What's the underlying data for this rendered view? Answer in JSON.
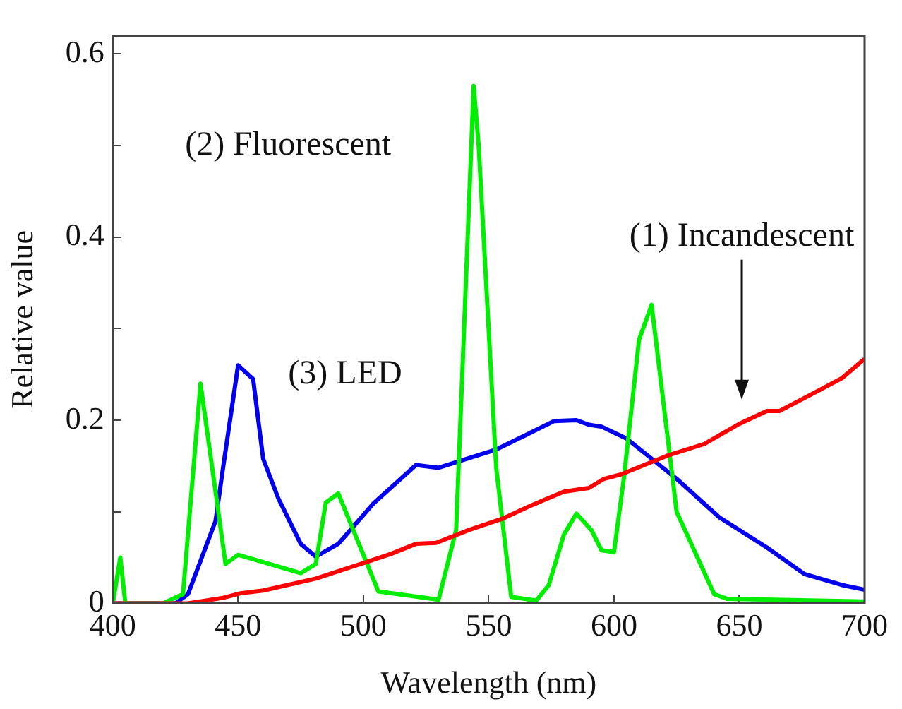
{
  "chart_data": {
    "type": "line",
    "xlabel": "Wavelength (nm)",
    "ylabel": "Relative value",
    "xlim": [
      400,
      700
    ],
    "xticks": [
      400,
      450,
      500,
      550,
      600,
      650,
      700
    ],
    "ylim": [
      0,
      0.62
    ],
    "yticks": [
      0,
      {
        "value": 0.1,
        "label": null
      },
      0.2,
      {
        "value": 0.3,
        "label": null
      },
      0.4,
      {
        "value": 0.5,
        "label": null
      },
      0.6
    ],
    "grid": false,
    "legend": false,
    "marker": "none",
    "line_style": "solid",
    "series": [
      {
        "name": "(1) Incandescent",
        "color": "#ff0000",
        "x": [
          400,
          420,
          430,
          444,
          451,
          460,
          481,
          500,
          511,
          521,
          529,
          542,
          556,
          567,
          580,
          590,
          596,
          603,
          622,
          636,
          650,
          661,
          666,
          680,
          691,
          700
        ],
        "values": [
          0,
          0,
          0,
          0.006,
          0.011,
          0.014,
          0.027,
          0.044,
          0.054,
          0.065,
          0.066,
          0.08,
          0.093,
          0.107,
          0.122,
          0.126,
          0.136,
          0.141,
          0.162,
          0.174,
          0.196,
          0.21,
          0.21,
          0.23,
          0.246,
          0.267
        ]
      },
      {
        "name": "(2) Fluorescent",
        "color": "#00ee00",
        "x": [
          400,
          403,
          405,
          420,
          428,
          435,
          445,
          450,
          475,
          481,
          485,
          490,
          506,
          530,
          537,
          544,
          546,
          553,
          559,
          569,
          574,
          580,
          585,
          591,
          595,
          600,
          604,
          610,
          615,
          625,
          640,
          645,
          700
        ],
        "values": [
          0,
          0.05,
          0,
          0,
          0.01,
          0.24,
          0.043,
          0.053,
          0.033,
          0.043,
          0.11,
          0.12,
          0.013,
          0.004,
          0.08,
          0.565,
          0.5,
          0.148,
          0.007,
          0.003,
          0.02,
          0.075,
          0.098,
          0.08,
          0.058,
          0.056,
          0.138,
          0.288,
          0.326,
          0.1,
          0.01,
          0.005,
          0.002
        ]
      },
      {
        "name": "(3) LED",
        "color": "#0000ee",
        "x": [
          400,
          425,
          430,
          441,
          444,
          450,
          456,
          460,
          466,
          475,
          481,
          490,
          504,
          521,
          530,
          546,
          553,
          565,
          576,
          585,
          590,
          595,
          605,
          615,
          625,
          642,
          661,
          676,
          691,
          700
        ],
        "values": [
          0,
          0,
          0.01,
          0.09,
          0.148,
          0.26,
          0.245,
          0.158,
          0.115,
          0.065,
          0.051,
          0.065,
          0.109,
          0.151,
          0.148,
          0.162,
          0.168,
          0.184,
          0.199,
          0.2,
          0.195,
          0.193,
          0.18,
          0.158,
          0.136,
          0.094,
          0.061,
          0.032,
          0.02,
          0.015
        ]
      }
    ]
  }
}
